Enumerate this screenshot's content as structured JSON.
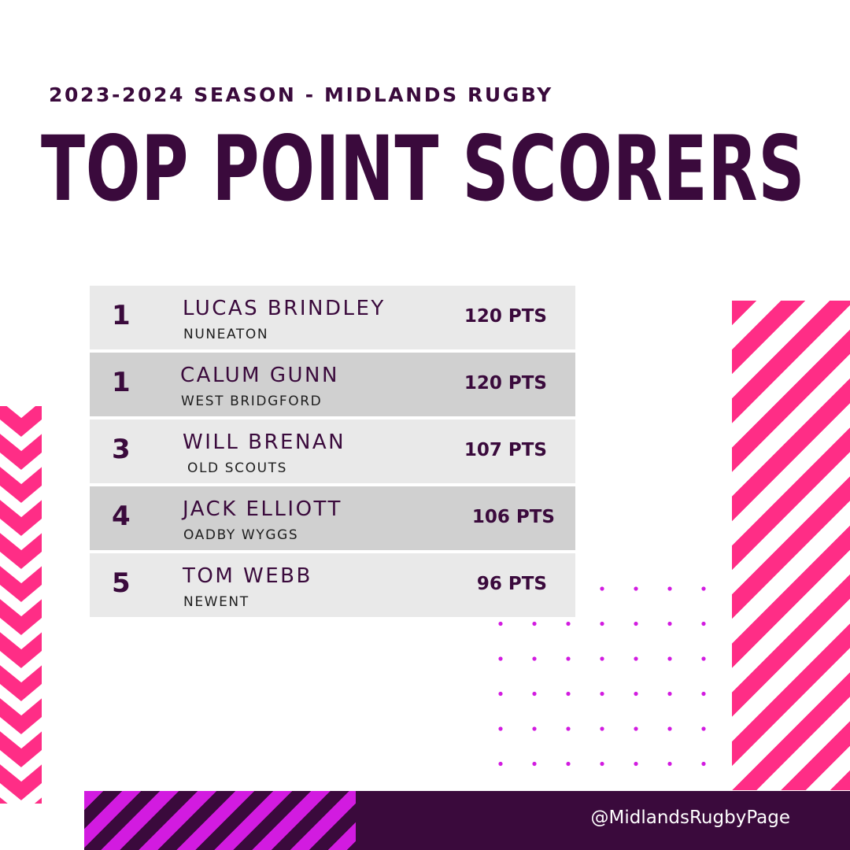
{
  "header": {
    "subtitle": "2023-2024 SEASON - MIDLANDS RUGBY",
    "title": "TOP POINT SCORERS"
  },
  "scorers": [
    {
      "rank": "1",
      "name": "LUCAS BRINDLEY",
      "club": "NUNEATON",
      "points": "120 PTS"
    },
    {
      "rank": "1",
      "name": "CALUM GUNN",
      "club": "WEST BRIDGFORD",
      "points": "120 PTS"
    },
    {
      "rank": "3",
      "name": "WILL BRENAN",
      "club": "OLD SCOUTS",
      "points": "107 PTS"
    },
    {
      "rank": "4",
      "name": "JACK ELLIOTT",
      "club": "OADBY WYGGS",
      "points": "106  PTS"
    },
    {
      "rank": "5",
      "name": "TOM WEBB",
      "club": "NEWENT",
      "points": "96 PTS"
    }
  ],
  "footer": {
    "handle": "@MidlandsRugbyPage"
  },
  "colors": {
    "primary": "#3a0a3c",
    "pink": "#ff2d86",
    "magenta": "#d21be0",
    "row_light": "#e9e9e9",
    "row_dark": "#d0d0d0"
  }
}
